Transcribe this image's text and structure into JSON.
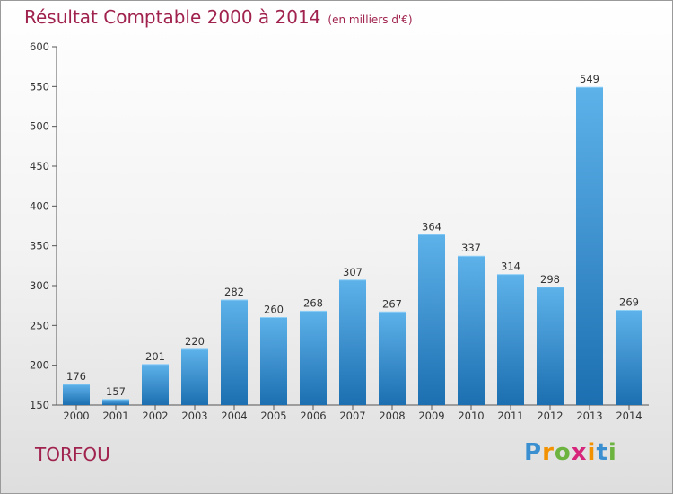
{
  "title": "Résultat Comptable 2000 à 2014",
  "unit": "(en milliers d'€)",
  "commune": "TORFOU",
  "logo": {
    "letters": [
      "P",
      "r",
      "o",
      "x",
      "i",
      "t",
      "i"
    ],
    "colors": [
      "#3a8fd0",
      "#f39200",
      "#6cb33f",
      "#d6257a",
      "#f39200",
      "#3a8fd0",
      "#6cb33f"
    ]
  },
  "colors": {
    "title": "#a0224e",
    "bar_top": "#5eb2ea",
    "bar_bottom": "#1c6fb0",
    "axis": "#555555"
  },
  "chart_data": {
    "type": "bar",
    "categories": [
      "2000",
      "2001",
      "2002",
      "2003",
      "2004",
      "2005",
      "2006",
      "2007",
      "2008",
      "2009",
      "2010",
      "2011",
      "2012",
      "2013",
      "2014"
    ],
    "values": [
      176,
      157,
      201,
      220,
      282,
      260,
      268,
      307,
      267,
      364,
      337,
      314,
      298,
      549,
      269
    ],
    "ylim": [
      150,
      600
    ],
    "yticks": [
      150,
      200,
      250,
      300,
      350,
      400,
      450,
      500,
      550,
      600
    ],
    "grid": false
  }
}
